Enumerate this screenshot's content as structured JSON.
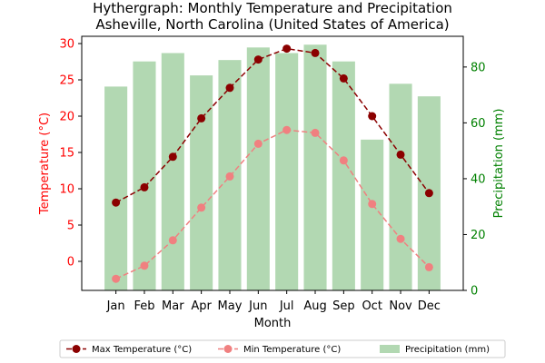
{
  "chart_data": {
    "type": "bar",
    "title": "Hythergraph: Monthly Temperature and Precipitation\nAsheville, North Carolina (United States of America)",
    "xlabel": "Month",
    "ylabel_left": "Temperature (°C)",
    "ylabel_right": "Precipitation (mm)",
    "categories": [
      "Jan",
      "Feb",
      "Mar",
      "Apr",
      "May",
      "Jun",
      "Jul",
      "Aug",
      "Sep",
      "Oct",
      "Nov",
      "Dec"
    ],
    "ylim_left": [
      -4,
      31
    ],
    "ylim_right": [
      0,
      91
    ],
    "yticks_left": [
      0,
      5,
      10,
      15,
      20,
      25,
      30
    ],
    "yticks_right": [
      0,
      20,
      40,
      60,
      80
    ],
    "series": [
      {
        "name": "Max Temperature (°C)",
        "type": "line",
        "axis": "left",
        "color": "#8b0000",
        "values": [
          8.1,
          10.2,
          14.4,
          19.7,
          23.9,
          27.8,
          29.3,
          28.7,
          25.2,
          20.0,
          14.7,
          9.4
        ]
      },
      {
        "name": "Min Temperature (°C)",
        "type": "line",
        "axis": "left",
        "color": "#f08080",
        "values": [
          -2.4,
          -0.6,
          2.9,
          7.4,
          11.7,
          16.2,
          18.1,
          17.7,
          13.9,
          7.9,
          3.1,
          -0.8
        ]
      },
      {
        "name": "Precipitation (mm)",
        "type": "bar",
        "axis": "right",
        "color": "#b2d8b2",
        "values": [
          73,
          82,
          85,
          77,
          82.5,
          87,
          85,
          88,
          82,
          54,
          74,
          69.5
        ]
      }
    ],
    "grid": false,
    "legend": {
      "placement": "bottom",
      "columns": 3
    }
  }
}
